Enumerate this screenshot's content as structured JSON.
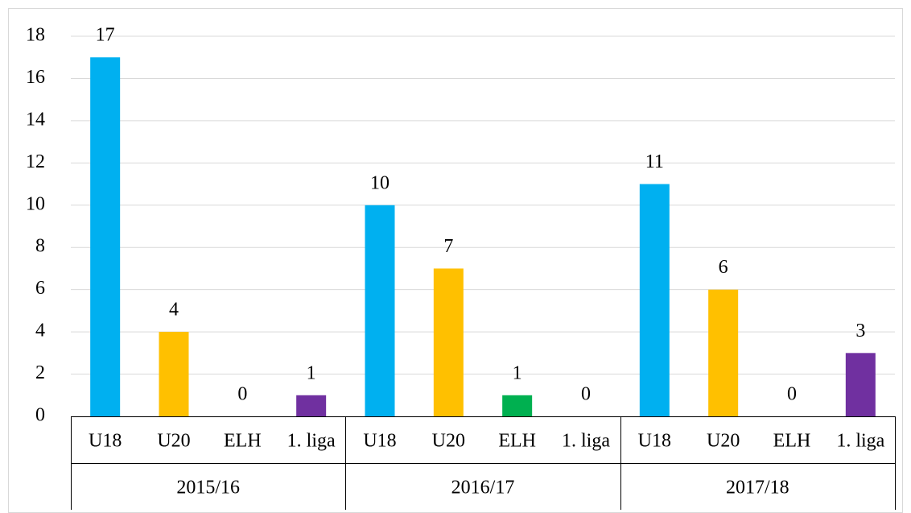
{
  "chart_data": {
    "type": "bar",
    "groups": [
      "2015/16",
      "2016/17",
      "2017/18"
    ],
    "categories": [
      "U18",
      "U20",
      "ELH",
      "1. liga",
      "U18",
      "U20",
      "ELH",
      "1. liga",
      "U18",
      "U20",
      "ELH",
      "1. liga"
    ],
    "values": [
      17,
      4,
      0,
      1,
      10,
      7,
      1,
      0,
      11,
      6,
      0,
      3
    ],
    "colors": [
      "#00b0f0",
      "#ffc000",
      "#00b050",
      "#7030a0",
      "#00b0f0",
      "#ffc000",
      "#00b050",
      "#7030a0",
      "#00b0f0",
      "#ffc000",
      "#00b050",
      "#7030a0"
    ],
    "ylim": [
      0,
      18
    ],
    "yticks": [
      0,
      2,
      4,
      6,
      8,
      10,
      12,
      14,
      16,
      18
    ],
    "grid": true
  }
}
